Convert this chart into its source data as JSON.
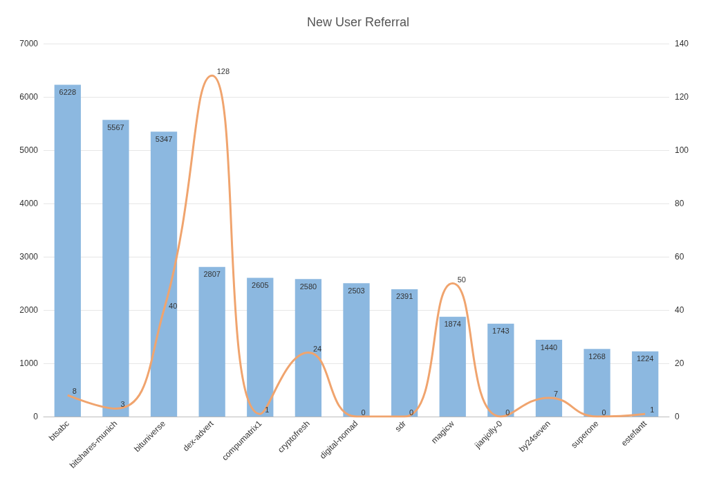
{
  "chart_data": {
    "type": "bar",
    "title": "New User Referral",
    "categories": [
      "btsabc",
      "bitshares-munich",
      "bituniverse",
      "dex-advert",
      "compumatrix1",
      "cryptofresh",
      "digital-nomad",
      "sdr",
      "magicw",
      "jianjolly-0",
      "by24seven",
      "superone",
      "estefantt"
    ],
    "series": [
      {
        "type": "bar",
        "color": "#8cb8e0",
        "values": [
          6228,
          5567,
          5347,
          2807,
          2605,
          2580,
          2503,
          2391,
          1874,
          1743,
          1440,
          1268,
          1224
        ]
      },
      {
        "type": "line",
        "axis": "y2",
        "color": "#f0a46e",
        "values": [
          8,
          3,
          40,
          128,
          1,
          24,
          0,
          0,
          50,
          0,
          7,
          0,
          1
        ]
      }
    ],
    "ylim": [
      0,
      7000
    ],
    "yticks": [
      0,
      1000,
      2000,
      3000,
      4000,
      5000,
      6000,
      7000
    ],
    "y2lim": [
      0,
      140
    ],
    "y2ticks": [
      0,
      20,
      40,
      60,
      80,
      100,
      120,
      140
    ],
    "grid": "y",
    "data_labels": true,
    "marker": "none",
    "line_style": "solid"
  }
}
